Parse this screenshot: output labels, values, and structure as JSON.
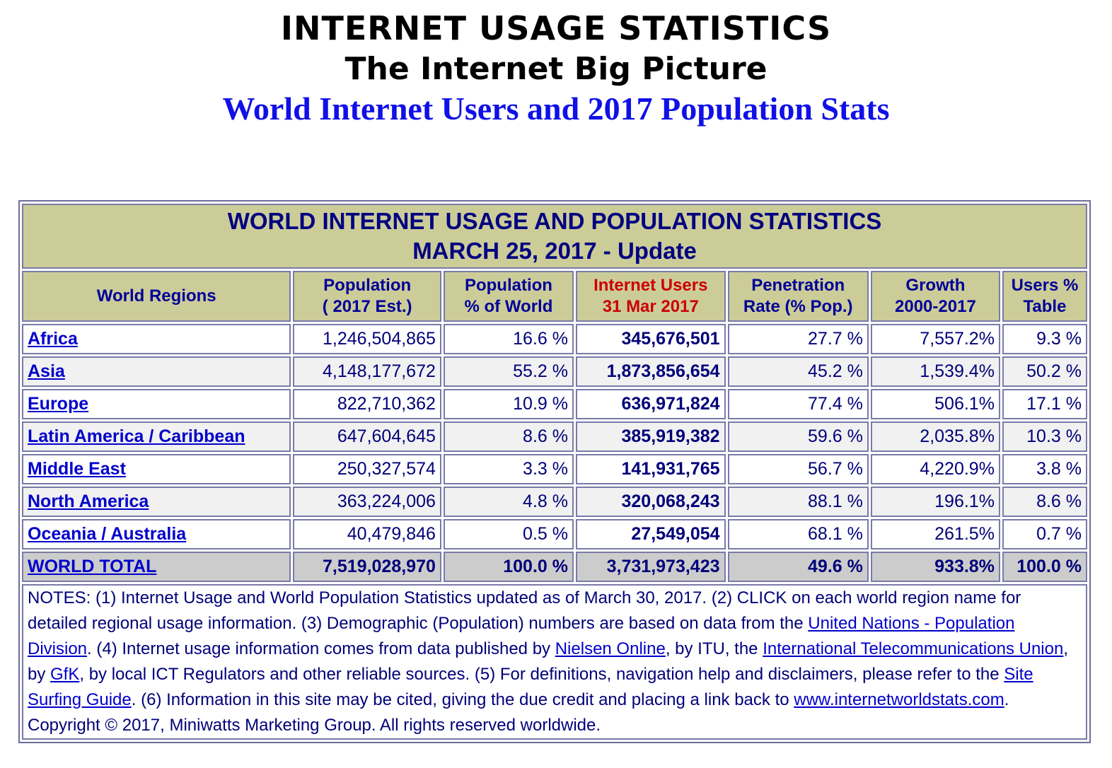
{
  "header": {
    "line1": "INTERNET USAGE STATISTICS",
    "line2": "The Internet Big Picture",
    "line3": "World Internet Users and 2017 Population Stats"
  },
  "table": {
    "title_line1": "WORLD INTERNET USAGE AND POPULATION STATISTICS",
    "title_line2": "MARCH 25, 2017 - Update",
    "columns": [
      {
        "line1": "World Regions",
        "line2": ""
      },
      {
        "line1": "Population",
        "line2": "( 2017 Est.)"
      },
      {
        "line1": "Population",
        "line2": "% of World"
      },
      {
        "line1": "Internet Users",
        "line2": "31 Mar 2017"
      },
      {
        "line1": "Penetration",
        "line2": "Rate (% Pop.)"
      },
      {
        "line1": "Growth",
        "line2": "2000-2017"
      },
      {
        "line1": "Users %",
        "line2": "Table"
      }
    ],
    "rows": [
      {
        "region": "Africa",
        "population": "1,246,504,865",
        "pop_pct": "16.6 %",
        "users": "345,676,501",
        "penetration": "27.7 %",
        "growth": "7,557.2%",
        "users_pct": "9.3 %"
      },
      {
        "region": "Asia",
        "population": "4,148,177,672",
        "pop_pct": "55.2 %",
        "users": "1,873,856,654",
        "penetration": "45.2 %",
        "growth": "1,539.4%",
        "users_pct": "50.2 %"
      },
      {
        "region": "Europe",
        "population": "822,710,362",
        "pop_pct": "10.9 %",
        "users": "636,971,824",
        "penetration": "77.4 %",
        "growth": "506.1%",
        "users_pct": "17.1 %"
      },
      {
        "region": "Latin America / Caribbean",
        "population": "647,604,645",
        "pop_pct": "8.6 %",
        "users": "385,919,382",
        "penetration": "59.6 %",
        "growth": "2,035.8%",
        "users_pct": "10.3 %"
      },
      {
        "region": "Middle East",
        "population": "250,327,574",
        "pop_pct": "3.3 %",
        "users": "141,931,765",
        "penetration": "56.7 %",
        "growth": "4,220.9%",
        "users_pct": "3.8 %"
      },
      {
        "region": "North America",
        "population": "363,224,006",
        "pop_pct": "4.8 %",
        "users": "320,068,243",
        "penetration": "88.1 %",
        "growth": "196.1%",
        "users_pct": "8.6 %"
      },
      {
        "region": "Oceania / Australia",
        "population": "40,479,846",
        "pop_pct": "0.5 %",
        "users": "27,549,054",
        "penetration": "68.1 %",
        "growth": "261.5%",
        "users_pct": "0.7 %"
      }
    ],
    "total": {
      "region": "WORLD TOTAL",
      "population": "7,519,028,970",
      "pop_pct": "100.0 %",
      "users": "3,731,973,423",
      "penetration": "49.6 %",
      "growth": "933.8%",
      "users_pct": "100.0 %"
    },
    "notes": {
      "t1": "NOTES: (1) Internet Usage and World Population Statistics updated as of March 30, 2017. (2) CLICK on each world region name for detailed regional usage information. (3) Demographic (Population) numbers are based on data from the ",
      "link_un": "United Nations - Population Division",
      "t2": ". (4) Internet usage information comes from data published by ",
      "link_nielsen": "Nielsen Online",
      "t3": ", by ITU, the ",
      "link_itu": "International Telecommunications Union",
      "t4": ", by ",
      "link_gfk": "GfK",
      "t5": ", by local ICT Regulators and other reliable sources. (5) For definitions, navigation help and disclaimers, please refer to the ",
      "link_guide": "Site Surfing Guide",
      "t6": ". (6) Information in this site may be cited, giving the due credit and placing a link back to ",
      "link_site": "www.internetworldstats.com",
      "t7": ". Copyright © 2017, Miniwatts Marketing Group. All rights reserved worldwide."
    }
  },
  "colors": {
    "header_bg": "#cccc99",
    "title_text": "#000080",
    "link": "#0000cc",
    "internet_users_header": "#cc0000",
    "subtitle_blue": "#1010e8"
  }
}
